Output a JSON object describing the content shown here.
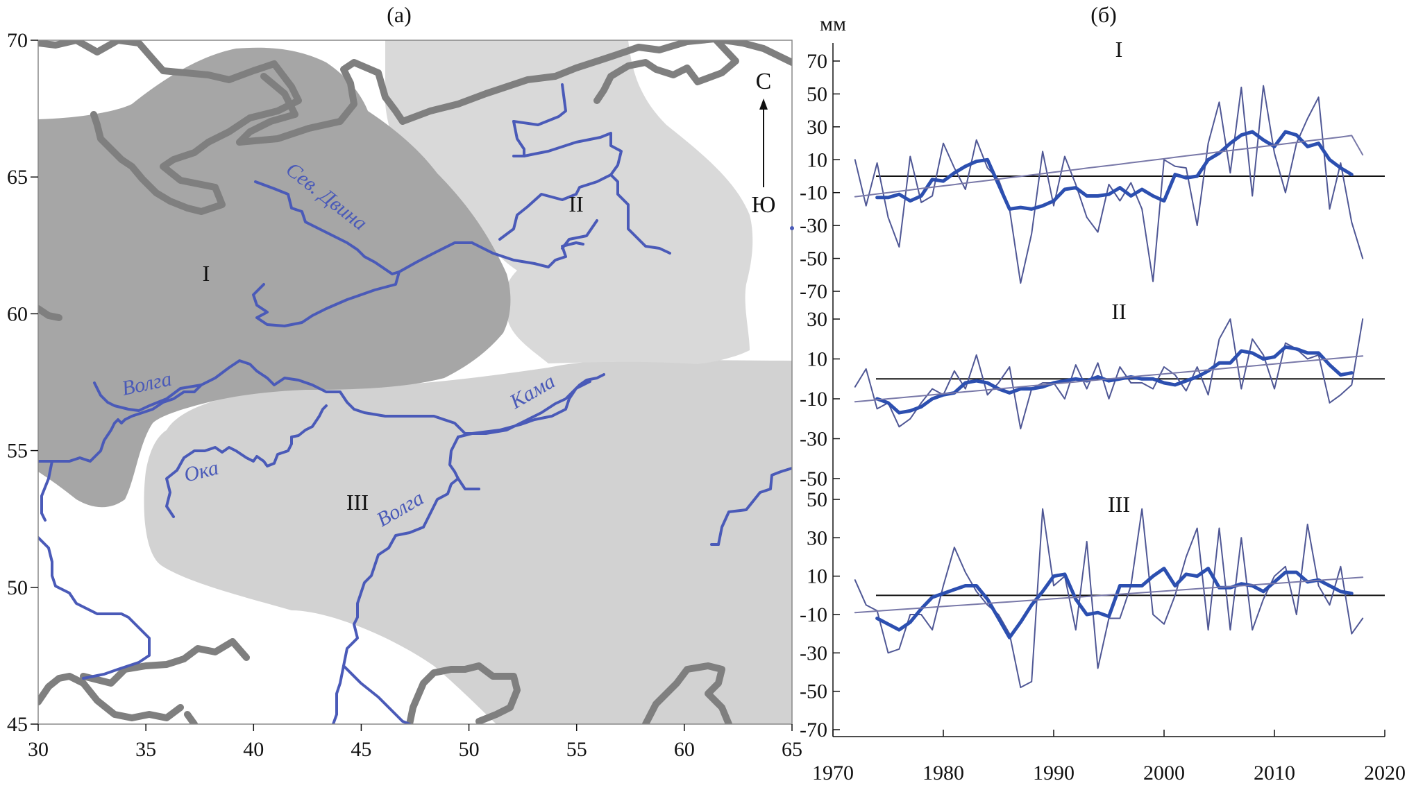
{
  "panel_a": {
    "label": "(а)",
    "x_ticks": [
      "30",
      "35",
      "40",
      "45",
      "50",
      "55",
      "60",
      "65"
    ],
    "y_ticks": [
      "70",
      "65",
      "60",
      "55",
      "50",
      "45"
    ],
    "regions": [
      {
        "id": "I",
        "label": "I",
        "color": "#a6a6a6"
      },
      {
        "id": "II",
        "label": "II",
        "color": "#d9d9d9"
      },
      {
        "id": "III",
        "label": "III",
        "color": "#d2d2d2"
      }
    ],
    "rivers": {
      "sev_dvina": "Сев. Двина",
      "volga_north": "Волга",
      "kama": "Кама",
      "oka": "Ока",
      "volga_south": "Волга"
    },
    "compass": {
      "north": "С",
      "south": "Ю"
    },
    "colors": {
      "river": "#4a5ab8",
      "coast": "#7f7f7f"
    }
  },
  "panel_b": {
    "label": "(б)",
    "unit": "мм",
    "x_ticks": [
      "1970",
      "1980",
      "1990",
      "2000",
      "2010",
      "2020"
    ]
  },
  "chart_data": [
    {
      "type": "line",
      "name": "I",
      "ylim": [
        -70,
        70
      ],
      "yticks": [
        "70",
        "50",
        "30",
        "10",
        "-10",
        "-30",
        "-50",
        "-70"
      ],
      "x": [
        1972,
        1973,
        1974,
        1975,
        1976,
        1977,
        1978,
        1979,
        1980,
        1981,
        1982,
        1983,
        1984,
        1985,
        1986,
        1987,
        1988,
        1989,
        1990,
        1991,
        1992,
        1993,
        1994,
        1995,
        1996,
        1997,
        1998,
        1999,
        2000,
        2001,
        2002,
        2003,
        2004,
        2005,
        2006,
        2007,
        2008,
        2009,
        2010,
        2011,
        2012,
        2013,
        2014,
        2015,
        2016,
        2017,
        2018
      ],
      "series": [
        {
          "values": [
            10,
            -18,
            8,
            -25,
            -43,
            12,
            -16,
            -12,
            20,
            5,
            -8,
            22,
            5,
            -2,
            -20,
            -65,
            -35,
            15,
            -18,
            12,
            -5,
            -25,
            -34,
            -5,
            -15,
            -4,
            -20,
            -64,
            10,
            6,
            5,
            -30,
            20,
            45,
            2,
            54,
            -12,
            55,
            14,
            -10,
            20,
            35,
            48,
            -20,
            8,
            -28,
            -50
          ]
        },
        {
          "values": [
            null,
            null,
            -13,
            -13,
            -11,
            -15,
            -12,
            -2,
            -3,
            2,
            6,
            9,
            10,
            -5,
            -20,
            -19,
            -20,
            -18,
            -15,
            -8,
            -7,
            -12,
            -12,
            -11,
            -7,
            -12,
            -8,
            -12,
            -15,
            1,
            -1,
            0,
            10,
            14,
            20,
            25,
            27,
            22,
            18,
            27,
            25,
            18,
            20,
            10,
            5,
            1,
            null
          ]
        },
        {
          "values": [
            -12.5,
            -11.7,
            -10.8,
            -10.0,
            -9.2,
            -8.4,
            -7.5,
            -6.7,
            -5.9,
            -5.1,
            -4.2,
            -3.4,
            -2.6,
            -1.8,
            -0.9,
            -0.1,
            0.7,
            1.5,
            2.4,
            3.2,
            4.0,
            4.9,
            5.7,
            6.5,
            7.3,
            8.2,
            9.0,
            9.8,
            10.6,
            11.5,
            12.3,
            13.1,
            13.9,
            14.8,
            15.6,
            16.4,
            17.2,
            18.1,
            18.9,
            19.7,
            20.5,
            21.4,
            22.2,
            23.0,
            23.8,
            24.7,
            13.0
          ]
        }
      ]
    },
    {
      "type": "line",
      "name": "II",
      "ylim": [
        -50,
        30
      ],
      "yticks": [
        "30",
        "10",
        "-10",
        "-30",
        "-50"
      ],
      "x": [
        1972,
        1973,
        1974,
        1975,
        1976,
        1977,
        1978,
        1979,
        1980,
        1981,
        1982,
        1983,
        1984,
        1985,
        1986,
        1987,
        1988,
        1989,
        1990,
        1991,
        1992,
        1993,
        1994,
        1995,
        1996,
        1997,
        1998,
        1999,
        2000,
        2001,
        2002,
        2003,
        2004,
        2005,
        2006,
        2007,
        2008,
        2009,
        2010,
        2011,
        2012,
        2013,
        2014,
        2015,
        2016,
        2017,
        2018
      ],
      "series": [
        {
          "values": [
            -4,
            5,
            -15,
            -12,
            -24,
            -20,
            -12,
            -5,
            -8,
            4,
            -5,
            12,
            -8,
            -2,
            6,
            -25,
            -5,
            -2,
            -2,
            -10,
            7,
            -5,
            8,
            -10,
            6,
            -2,
            -2,
            -5,
            6,
            2,
            -6,
            6,
            -8,
            20,
            30,
            -5,
            20,
            12,
            -5,
            18,
            15,
            10,
            12,
            -12,
            -8,
            -3,
            30
          ]
        },
        {
          "values": [
            null,
            null,
            -10,
            -12,
            -17,
            -16,
            -14,
            -10,
            -8,
            -7,
            -2,
            -1,
            -2,
            -5,
            -7,
            -5,
            -5,
            -4,
            -2,
            -1,
            0,
            -1,
            1,
            -1,
            0,
            1,
            0,
            0,
            -2,
            -3,
            -1,
            1,
            4,
            8,
            8,
            14,
            13,
            10,
            11,
            16,
            15,
            13,
            13,
            7,
            2,
            3,
            null
          ]
        },
        {
          "values": [
            -11.5,
            -11.0,
            -10.5,
            -10.0,
            -9.5,
            -9.0,
            -8.5,
            -8.0,
            -7.5,
            -7.0,
            -6.5,
            -6.0,
            -5.5,
            -5.0,
            -4.5,
            -4.0,
            -3.5,
            -3.0,
            -2.5,
            -2.0,
            -1.5,
            -1.0,
            -0.5,
            0.0,
            0.5,
            1.0,
            1.5,
            2.0,
            2.5,
            3.0,
            3.5,
            4.0,
            4.5,
            5.0,
            5.5,
            6.0,
            6.5,
            7.0,
            7.5,
            8.0,
            8.5,
            9.0,
            9.5,
            10.0,
            10.5,
            11.0,
            11.5
          ]
        }
      ]
    },
    {
      "type": "line",
      "name": "III",
      "ylim": [
        -70,
        50
      ],
      "yticks": [
        "50",
        "30",
        "10",
        "-10",
        "-30",
        "-50",
        "-70"
      ],
      "x": [
        1972,
        1973,
        1974,
        1975,
        1976,
        1977,
        1978,
        1979,
        1980,
        1981,
        1982,
        1983,
        1984,
        1985,
        1986,
        1987,
        1988,
        1989,
        1990,
        1991,
        1992,
        1993,
        1994,
        1995,
        1996,
        1997,
        1998,
        1999,
        2000,
        2001,
        2002,
        2003,
        2004,
        2005,
        2006,
        2007,
        2008,
        2009,
        2010,
        2011,
        2012,
        2013,
        2014,
        2015,
        2016,
        2017,
        2018
      ],
      "series": [
        {
          "values": [
            8,
            -5,
            -8,
            -30,
            -28,
            -10,
            -10,
            -18,
            5,
            25,
            12,
            2,
            -5,
            -10,
            -20,
            -48,
            -45,
            45,
            5,
            10,
            -18,
            28,
            -38,
            -12,
            -12,
            5,
            45,
            -10,
            -15,
            0,
            20,
            35,
            -18,
            35,
            -18,
            30,
            -18,
            -2,
            10,
            15,
            -10,
            37,
            5,
            -5,
            15,
            -20,
            -12
          ]
        },
        {
          "values": [
            null,
            null,
            -12,
            -15,
            -18,
            -14,
            -7,
            -1,
            1,
            3,
            5,
            5,
            -2,
            -12,
            -22,
            -14,
            -5,
            2,
            10,
            11,
            -2,
            -10,
            -9,
            -11,
            5,
            5,
            5,
            10,
            14,
            5,
            11,
            10,
            14,
            4,
            4,
            6,
            5,
            2,
            7,
            12,
            12,
            7,
            8,
            5,
            2,
            1,
            null
          ]
        },
        {
          "values": [
            -9.0,
            -8.6,
            -8.2,
            -7.8,
            -7.4,
            -7.0,
            -6.6,
            -6.2,
            -5.8,
            -5.4,
            -5.0,
            -4.6,
            -4.2,
            -3.8,
            -3.4,
            -3.0,
            -2.6,
            -2.2,
            -1.8,
            -1.4,
            -1.0,
            -0.6,
            -0.2,
            0.2,
            0.6,
            1.0,
            1.4,
            1.8,
            2.2,
            2.6,
            3.0,
            3.4,
            3.8,
            4.2,
            4.6,
            5.0,
            5.4,
            5.8,
            6.2,
            6.6,
            7.0,
            7.4,
            7.8,
            8.2,
            8.6,
            9.0,
            9.4
          ]
        }
      ]
    }
  ]
}
